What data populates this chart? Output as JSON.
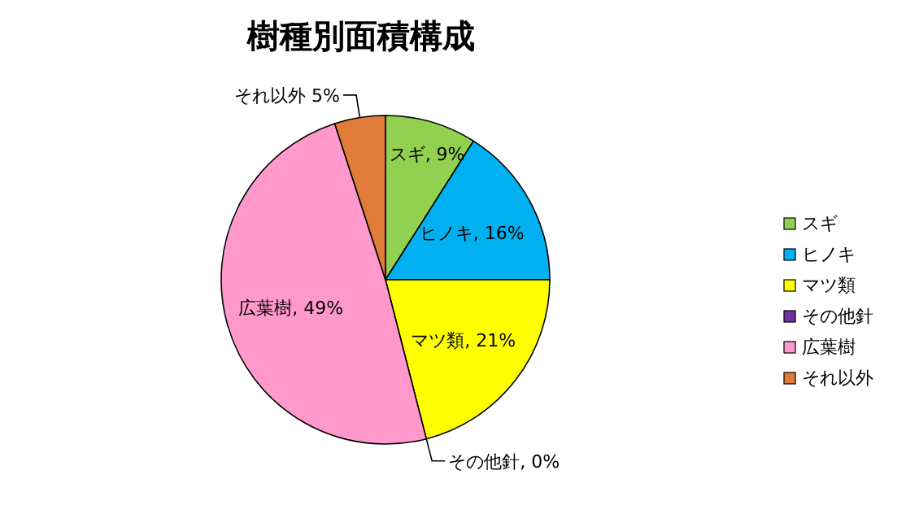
{
  "chart_data": {
    "type": "pie",
    "title": "樹種別面積構成",
    "categories": [
      "スギ",
      "ヒノキ",
      "マツ類",
      "その他針",
      "広葉樹",
      "それ以外"
    ],
    "values": [
      9,
      16,
      21,
      0,
      49,
      5
    ],
    "colors": [
      "#92d050",
      "#00b0f0",
      "#ffff00",
      "#7030a0",
      "#ff99cc",
      "#e07b39"
    ],
    "value_labels": [
      "スギ, 9%",
      "ヒノキ, 16%",
      "マツ類, 21%",
      "その他針, 0%",
      "広葉樹, 49%",
      "それ以外 5%"
    ],
    "legend": "right"
  }
}
